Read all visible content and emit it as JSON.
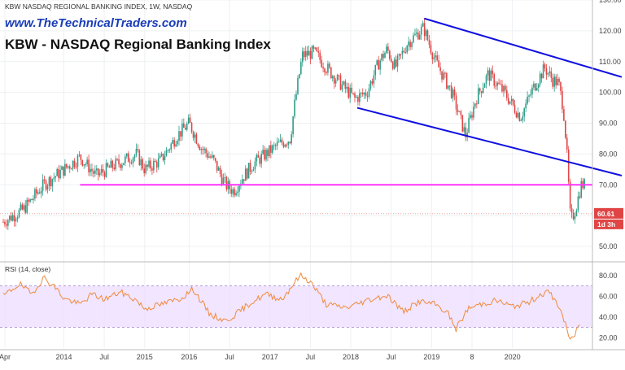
{
  "header": {
    "symbol_line": "KBW NASDAQ REGIONAL BANKING INDEX, 1W, NASDAQ",
    "website": "www.TheTechnicalTraders.com",
    "title": "KBW - NASDAQ Regional Banking Index"
  },
  "rsi": {
    "label": "RSI (14, close)",
    "color": "#f08a3c",
    "band_color": "#ecdcff",
    "axis_ticks": [
      "80.00",
      "60.00",
      "40.00",
      "20.00"
    ],
    "upper_band": 70,
    "lower_band": 30,
    "ylim": [
      10,
      90
    ]
  },
  "price_badge": {
    "value": "60.61",
    "countdown": "1d 3h",
    "color": "#e04545"
  },
  "chart_data": [
    {
      "type": "candlestick",
      "title": "KBW - NASDAQ Regional Banking Index",
      "xlabel": "",
      "ylabel": "",
      "ylim": [
        45,
        130
      ],
      "y_ticks": [
        "130.00",
        "120.00",
        "110.00",
        "100.00",
        "90.00",
        "80.00",
        "70.00",
        "60.00",
        "50.00"
      ],
      "x_ticks": [
        "Apr",
        "2014",
        "Jul",
        "2015",
        "2016",
        "Jul",
        "2017",
        "Jul",
        "2018",
        "Jul",
        "2019",
        "8",
        "2020"
      ],
      "x_range": [
        2013.25,
        2020.5
      ],
      "up_color": "#2e9c88",
      "down_color": "#e04545",
      "grid": true,
      "series": [
        {
          "x": [
            2013.25,
            2013.5,
            2013.75,
            2014.0,
            2014.2,
            2014.4,
            2014.6,
            2014.75,
            2014.9,
            2015.0,
            2015.2,
            2015.4,
            2015.55,
            2015.7,
            2015.85,
            2016.0,
            2016.1,
            2016.2,
            2016.35,
            2016.5,
            2016.65,
            2016.8,
            2016.86,
            2016.95,
            2017.1,
            2017.25,
            2017.45,
            2017.6,
            2017.75,
            2017.9,
            2018.0,
            2018.1,
            2018.25,
            2018.45,
            2018.6,
            2018.8,
            2018.97,
            2019.1,
            2019.25,
            2019.45,
            2019.65,
            2019.8,
            2019.95,
            2020.05,
            2020.12,
            2020.18,
            2020.22,
            2020.27,
            2020.33,
            2020.4
          ],
          "values": [
            58,
            62,
            70,
            75,
            79,
            73,
            76,
            78,
            80,
            75,
            78,
            86,
            90,
            82,
            78,
            70,
            68,
            72,
            77,
            80,
            83,
            85,
            97,
            112,
            113,
            108,
            102,
            98,
            100,
            110,
            114,
            108,
            116,
            121,
            110,
            100,
            86,
            98,
            106,
            100,
            92,
            101,
            108,
            104,
            103,
            95,
            82,
            58,
            62,
            70
          ]
        }
      ]
    },
    {
      "type": "line",
      "title": "RSI (14, close)",
      "ylim": [
        10,
        90
      ],
      "series": [
        {
          "x": [
            2013.25,
            2013.45,
            2013.6,
            2013.75,
            2013.9,
            2014.0,
            2014.2,
            2014.35,
            2014.5,
            2014.7,
            2014.9,
            2015.0,
            2015.2,
            2015.45,
            2015.6,
            2015.8,
            2016.0,
            2016.1,
            2016.3,
            2016.5,
            2016.7,
            2016.85,
            2016.93,
            2017.05,
            2017.25,
            2017.5,
            2017.75,
            2018.0,
            2018.2,
            2018.4,
            2018.6,
            2018.75,
            2018.85,
            2019.0,
            2019.15,
            2019.35,
            2019.55,
            2019.75,
            2019.9,
            2020.0,
            2020.08,
            2020.15,
            2020.2,
            2020.25,
            2020.3,
            2020.36,
            2020.4
          ],
          "values": [
            60,
            72,
            62,
            78,
            68,
            58,
            52,
            62,
            57,
            64,
            56,
            48,
            52,
            58,
            67,
            43,
            36,
            41,
            53,
            62,
            57,
            73,
            80,
            74,
            52,
            49,
            56,
            61,
            45,
            55,
            52,
            44,
            28,
            48,
            52,
            56,
            50,
            54,
            62,
            64,
            56,
            46,
            34,
            20,
            18,
            32,
            30
          ]
        }
      ]
    }
  ],
  "annotations": [
    {
      "type": "trendline",
      "color": "#1010e0",
      "from": {
        "x": 2018.46,
        "y": 124
      },
      "to": {
        "x": 2020.5,
        "y": 105
      }
    },
    {
      "type": "trendline",
      "color": "#1010e0",
      "from": {
        "x": 2017.63,
        "y": 95
      },
      "to": {
        "x": 2020.5,
        "y": 73
      }
    },
    {
      "type": "hline",
      "color": "#ff33ff",
      "from_x": 2014.0,
      "to_x": 2020.5,
      "y": 70
    }
  ]
}
